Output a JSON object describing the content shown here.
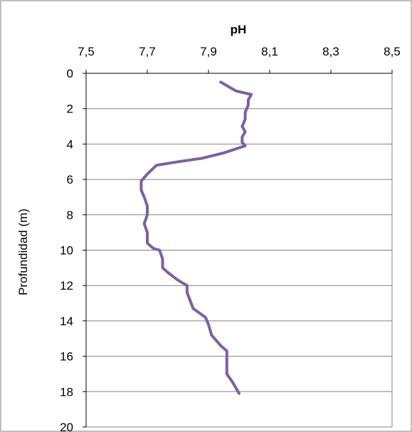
{
  "chart_data": {
    "type": "line",
    "title": "pH",
    "xlabel": "pH",
    "ylabel": "Profundidad (m)",
    "x_axis_position": "top",
    "y_axis_inverted": true,
    "xlim": [
      7.5,
      8.5
    ],
    "ylim": [
      0,
      20
    ],
    "x_ticks": [
      7.5,
      7.7,
      7.9,
      8.1,
      8.3,
      8.5
    ],
    "x_tick_labels": [
      "7,5",
      "7,7",
      "7,9",
      "8,1",
      "8,3",
      "8,5"
    ],
    "y_ticks": [
      0,
      2,
      4,
      6,
      8,
      10,
      12,
      14,
      16,
      18,
      20
    ],
    "y_tick_labels": [
      "0",
      "2",
      "4",
      "6",
      "8",
      "10",
      "12",
      "14",
      "16",
      "18",
      "20"
    ],
    "grid": "horizontal",
    "colors": {
      "line": "#7B62A3",
      "grid": "#808080",
      "axis": "#000000",
      "frame": "#808080"
    },
    "series": [
      {
        "x": [
          7.94,
          7.96,
          7.99,
          8.04,
          8.03,
          8.03,
          8.02,
          8.02,
          8.01,
          8.02,
          8.01,
          8.01,
          8.02,
          7.95,
          7.88,
          7.8,
          7.73,
          7.7,
          7.68,
          7.68,
          7.69,
          7.7,
          7.7,
          7.69,
          7.7,
          7.7,
          7.72,
          7.74,
          7.75,
          7.75,
          7.77,
          7.8,
          7.83,
          7.83,
          7.85,
          7.89,
          7.9,
          7.91,
          7.93,
          7.94,
          7.96,
          7.96,
          7.96,
          7.98,
          8.0
        ],
        "y": [
          0.5,
          0.7,
          1.0,
          1.2,
          1.5,
          1.8,
          2.2,
          2.6,
          3.0,
          3.3,
          3.6,
          3.9,
          4.1,
          4.5,
          4.8,
          5.0,
          5.2,
          5.7,
          6.1,
          6.6,
          7.0,
          7.5,
          8.0,
          8.5,
          9.0,
          9.6,
          9.9,
          10.0,
          10.5,
          11.0,
          11.3,
          11.7,
          12.0,
          12.4,
          13.3,
          13.8,
          14.2,
          14.8,
          15.2,
          15.4,
          15.7,
          16.2,
          17.0,
          17.5,
          18.1
        ]
      }
    ]
  }
}
